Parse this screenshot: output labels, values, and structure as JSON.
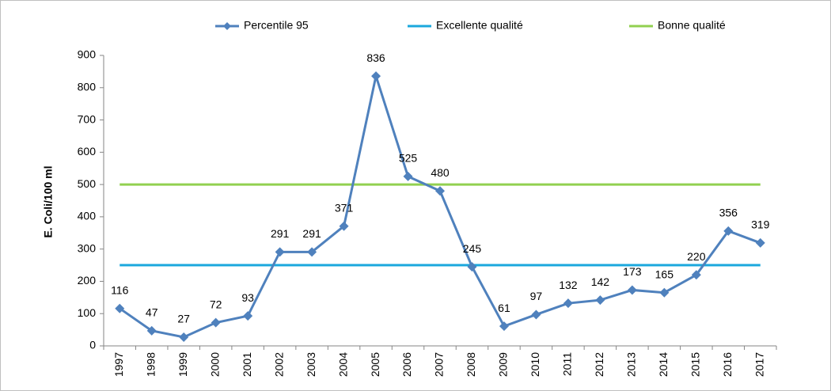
{
  "chart_data": {
    "type": "line",
    "y_label": "E. Coli/100 ml",
    "categories": [
      "1997",
      "1998",
      "1999",
      "2000",
      "2001",
      "2002",
      "2003",
      "2004",
      "2005",
      "2006",
      "2007",
      "2008",
      "2009",
      "2010",
      "2011",
      "2012",
      "2013",
      "2014",
      "2015",
      "2016",
      "2017"
    ],
    "series": [
      {
        "name": "Percentile 95",
        "color": "#4f81bd",
        "marker": "diamond",
        "data_labels": true,
        "values": [
          116,
          47,
          27,
          72,
          93,
          291,
          291,
          371,
          836,
          525,
          480,
          245,
          61,
          97,
          132,
          142,
          173,
          165,
          220,
          356,
          319
        ]
      },
      {
        "name": "Excellente qualité",
        "color": "#1ba8dd",
        "values": [
          250,
          250,
          250,
          250,
          250,
          250,
          250,
          250,
          250,
          250,
          250,
          250,
          250,
          250,
          250,
          250,
          250,
          250,
          250,
          250,
          250
        ]
      },
      {
        "name": "Bonne qualité",
        "color": "#92d050",
        "values": [
          500,
          500,
          500,
          500,
          500,
          500,
          500,
          500,
          500,
          500,
          500,
          500,
          500,
          500,
          500,
          500,
          500,
          500,
          500,
          500,
          500
        ]
      }
    ],
    "ylim": [
      0,
      900
    ],
    "yticks": [
      0,
      100,
      200,
      300,
      400,
      500,
      600,
      700,
      800,
      900
    ],
    "grid": false,
    "legend": "top"
  }
}
